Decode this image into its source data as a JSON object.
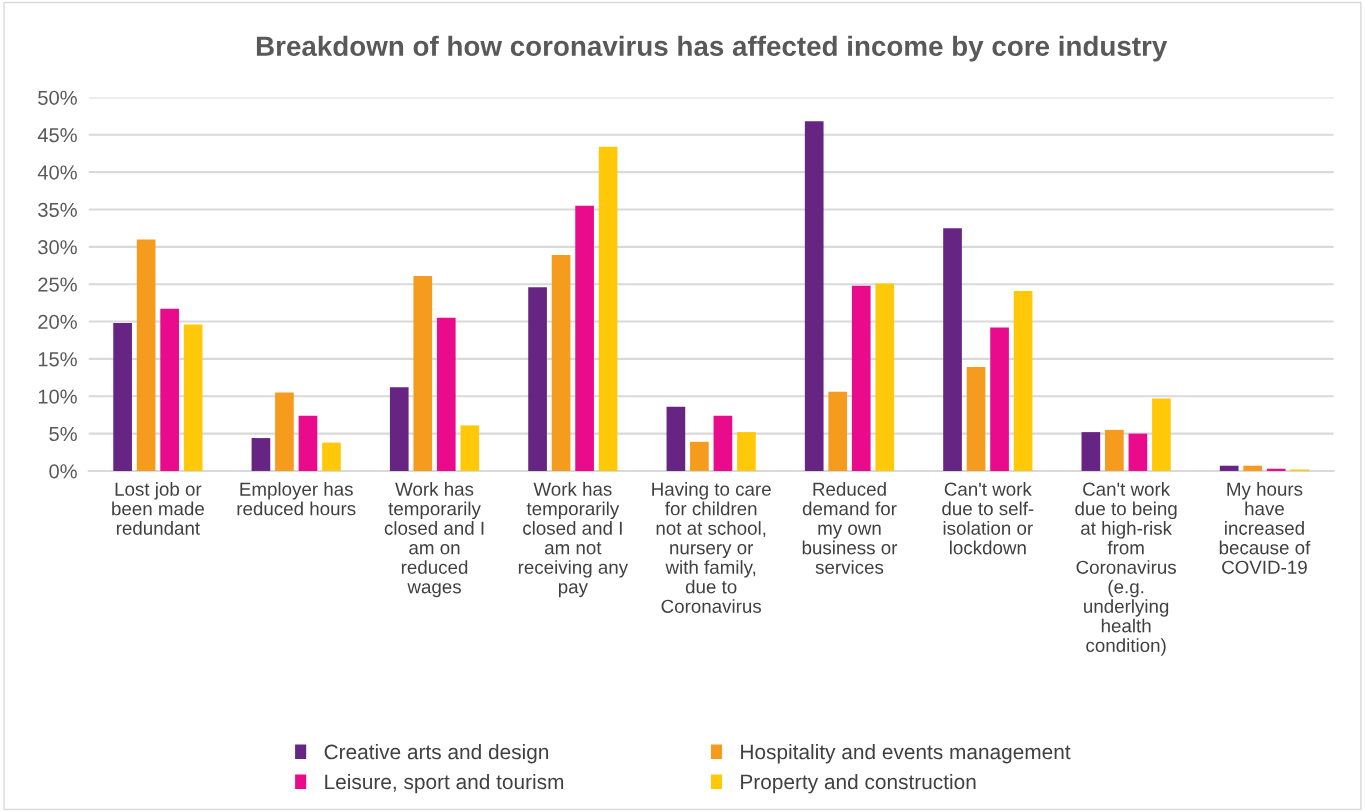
{
  "chart_data": {
    "type": "bar",
    "title": "Breakdown of how coronavirus has affected income by core industry",
    "categories": [
      "Lost job or\nbeen made\nredundant",
      "Employer has\nreduced hours",
      "Work has\ntemporarily\nclosed and I\nam on\nreduced\nwages",
      "Work has\ntemporarily\nclosed and I\nam not\nreceiving any\npay",
      "Having to care\nfor children\nnot at school,\nnursery or\nwith family,\ndue to\nCoronavirus",
      "Reduced\ndemand for\nmy own\nbusiness or\nservices",
      "Can't work\ndue to self-\nisolation or\nlockdown",
      "Can't work\ndue to being\nat high-risk\nfrom\nCoronavirus\n(e.g.\nunderlying\nhealth\ncondition)",
      "My hours\nhave\nincreased\nbecause of\nCOVID-19"
    ],
    "series": [
      {
        "name": "Creative arts and design",
        "color": "#662483",
        "values": [
          19.8,
          4.4,
          11.2,
          24.6,
          8.6,
          46.8,
          32.5,
          5.2,
          0.7
        ]
      },
      {
        "name": "Hospitality and events management",
        "color": "#f59c1f",
        "values": [
          31.0,
          10.5,
          26.1,
          28.9,
          3.9,
          10.6,
          13.9,
          5.5,
          0.7
        ]
      },
      {
        "name": "Leisure, sport and tourism",
        "color": "#ea0a8c",
        "values": [
          21.7,
          7.4,
          20.5,
          35.5,
          7.4,
          24.8,
          19.2,
          5.0,
          0.3
        ]
      },
      {
        "name": "Property and construction",
        "color": "#ffc90a",
        "values": [
          19.6,
          3.8,
          6.1,
          43.4,
          5.2,
          25.1,
          24.1,
          9.7,
          0.2
        ]
      }
    ],
    "ylim": [
      0,
      50
    ],
    "yticks": [
      {
        "value": 0,
        "label": "0%"
      },
      {
        "value": 5,
        "label": "5%"
      },
      {
        "value": 10,
        "label": "10%"
      },
      {
        "value": 15,
        "label": "15%"
      },
      {
        "value": 20,
        "label": "20%"
      },
      {
        "value": 25,
        "label": "25%"
      },
      {
        "value": 30,
        "label": "30%"
      },
      {
        "value": 35,
        "label": "35%"
      },
      {
        "value": 40,
        "label": "40%"
      },
      {
        "value": 45,
        "label": "45%"
      },
      {
        "value": 50,
        "label": "50%"
      }
    ],
    "grid": "y",
    "legend": "bottom"
  }
}
